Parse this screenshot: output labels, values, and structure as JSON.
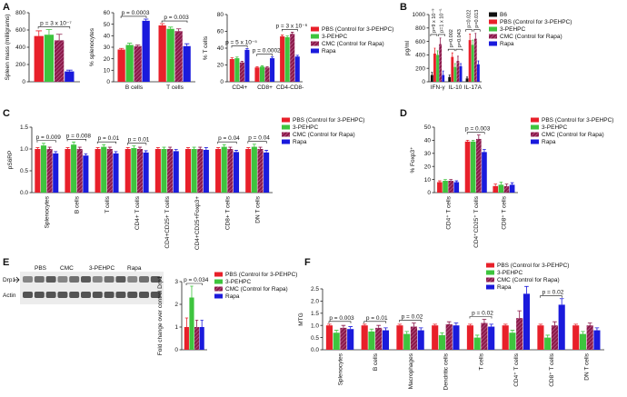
{
  "panel_labels": [
    "A",
    "B",
    "C",
    "D",
    "E",
    "F"
  ],
  "blot": {
    "lanes": [
      "PBS",
      "CMC",
      "3-PEHPC",
      "Rapa"
    ],
    "rows": [
      "Drp1",
      "Actin"
    ]
  },
  "chart_data": [
    {
      "type": "bar",
      "ylabel": "Spleen mass (milligrams)",
      "categories": [
        null
      ],
      "ylim": [
        0,
        800
      ],
      "yticks": [
        0,
        200,
        400,
        600,
        800
      ],
      "legend": false,
      "series": [
        {
          "color": "#e8202a",
          "values": [
            530
          ],
          "errors": [
            60
          ]
        },
        {
          "color": "#3ec43e",
          "values": [
            545
          ],
          "errors": [
            60
          ]
        },
        {
          "color": "#8b1a4a",
          "hatch": true,
          "values": [
            480
          ],
          "errors": [
            70
          ]
        },
        {
          "color": "#1a1adc",
          "values": [
            120
          ],
          "errors": [
            15
          ]
        }
      ],
      "annotations": [
        {
          "text": "p = 3 x 10⁻⁷",
          "category": null
        }
      ]
    },
    {
      "type": "bar",
      "ylabel": "% splenocytes",
      "categories": [
        "B cells",
        "T cells"
      ],
      "ylim": [
        0,
        60
      ],
      "yticks": [
        0,
        10,
        20,
        30,
        40,
        50,
        60
      ],
      "legend": false,
      "series": [
        {
          "color": "#e8202a",
          "values": [
            28,
            49
          ],
          "errors": [
            1,
            1.5
          ]
        },
        {
          "color": "#3ec43e",
          "values": [
            32,
            46
          ],
          "errors": [
            1.5,
            1.5
          ]
        },
        {
          "color": "#8b1a4a",
          "hatch": true,
          "values": [
            31,
            44
          ],
          "errors": [
            1,
            2
          ]
        },
        {
          "color": "#1a1adc",
          "values": [
            53,
            31
          ],
          "errors": [
            1.5,
            2
          ]
        }
      ],
      "annotations": [
        {
          "text": "p = 0.0003",
          "category": "B cells"
        },
        {
          "text": "p = 0.003",
          "category": "T cells"
        }
      ]
    },
    {
      "type": "bar",
      "ylabel": "% T cells",
      "categories": [
        "CD4+",
        "CD8+",
        "CD4-CD8-"
      ],
      "ylim": [
        0,
        80
      ],
      "yticks": [
        0,
        20,
        40,
        60,
        80
      ],
      "legend": true,
      "series": [
        {
          "name": "PBS (Control for 3-PEHPC)",
          "color": "#e8202a",
          "values": [
            27,
            17,
            54
          ],
          "errors": [
            1.5,
            1,
            1.5
          ]
        },
        {
          "name": "3-PEHPC",
          "color": "#3ec43e",
          "values": [
            28,
            18,
            53
          ],
          "errors": [
            1.5,
            1,
            1.5
          ]
        },
        {
          "name": "CMC (Control for Rapa)",
          "color": "#8b1a4a",
          "hatch": true,
          "values": [
            23,
            17,
            57
          ],
          "errors": [
            1.5,
            1,
            2
          ]
        },
        {
          "name": "Rapa",
          "color": "#1a1adc",
          "values": [
            38,
            28,
            30
          ],
          "errors": [
            1.5,
            1.5,
            1.5
          ]
        }
      ],
      "annotations": [
        {
          "text": "p = 5 x 10⁻⁵",
          "category": "CD4+"
        },
        {
          "text": "p = 0.0002",
          "category": "CD8+"
        },
        {
          "text": "p = 3 x 10⁻⁶",
          "category": "CD4-CD8-"
        }
      ]
    },
    {
      "type": "bar",
      "ylabel": "pg/ml",
      "categories": [
        "IFN-γ",
        "IL-10",
        "IL-17A"
      ],
      "ylim": [
        0,
        1000
      ],
      "yticks": [
        0,
        200,
        400,
        600,
        800,
        1000
      ],
      "legend": true,
      "series": [
        {
          "name": "B6",
          "color": "#111111",
          "values": [
            100,
            70,
            50
          ],
          "errors": [
            40,
            30,
            20
          ]
        },
        {
          "name": "PBS (Control for 3-PEHPC)",
          "color": "#e8202a",
          "values": [
            420,
            370,
            620
          ],
          "errors": [
            80,
            60,
            90
          ]
        },
        {
          "name": "3-PEHPC",
          "color": "#3ec43e",
          "values": [
            400,
            220,
            550
          ],
          "errors": [
            60,
            50,
            70
          ]
        },
        {
          "name": "CMC (Control for Rapa)",
          "color": "#8b1a4a",
          "hatch": true,
          "values": [
            560,
            310,
            640
          ],
          "errors": [
            90,
            70,
            80
          ]
        },
        {
          "name": "Rapa",
          "color": "#1a1adc",
          "values": [
            100,
            230,
            260
          ],
          "errors": [
            60,
            40,
            50
          ]
        }
      ],
      "annotations": [
        {
          "text": "p=9 x 10⁻⁸",
          "category": "IFN-γ"
        },
        {
          "text": "p=1 x 10⁻⁵",
          "category": "IFN-γ"
        },
        {
          "text": "p=0.002",
          "category": "IL-10"
        },
        {
          "text": "p=0.043",
          "category": "IL-10"
        },
        {
          "text": "p=0.022",
          "category": "IL-17A"
        },
        {
          "text": "p=0.013",
          "category": "IL-17A"
        }
      ]
    },
    {
      "type": "bar",
      "ylabel": "pS6RP",
      "categories": [
        "Splenocytes",
        "B cells",
        "T cells",
        "CD4+ T cells",
        "CD4+CD25+ T cells",
        "CD4+CD25+Foxp3+",
        "CD8+ T cells",
        "DN T cells"
      ],
      "ylim": [
        0,
        1.5
      ],
      "yticks": [
        {
          "value": 0,
          "label": "0.0"
        },
        0.5,
        {
          "value": 1,
          "label": "1.0"
        },
        1.5
      ],
      "legend": true,
      "series": [
        {
          "name": "PBS (Control for 3-PEHPC)",
          "color": "#e8202a",
          "values": [
            1,
            1,
            1,
            1,
            1,
            1,
            1,
            1
          ],
          "errors": [
            0.03,
            0.03,
            0.03,
            0.03,
            0.03,
            0.03,
            0.03,
            0.03
          ]
        },
        {
          "name": "3-PEHPC",
          "color": "#3ec43e",
          "values": [
            1.08,
            1.1,
            1.05,
            1.02,
            1.0,
            1.0,
            1.05,
            1.05
          ],
          "errors": [
            0.05,
            0.06,
            0.05,
            0.05,
            0.04,
            0.04,
            0.05,
            0.06
          ]
        },
        {
          "name": "CMC (Control for Rapa)",
          "color": "#8b1a4a",
          "hatch": true,
          "values": [
            1.0,
            1.0,
            1.0,
            1.0,
            1.0,
            1.0,
            1.0,
            1.0
          ],
          "errors": [
            0.04,
            0.04,
            0.04,
            0.04,
            0.04,
            0.04,
            0.04,
            0.04
          ]
        },
        {
          "name": "Rapa",
          "color": "#1a1adc",
          "values": [
            0.9,
            0.85,
            0.9,
            0.92,
            0.95,
            0.98,
            0.93,
            0.92
          ],
          "errors": [
            0.04,
            0.04,
            0.04,
            0.04,
            0.04,
            0.05,
            0.04,
            0.05
          ]
        }
      ],
      "annotations": [
        {
          "text": "p = 0.009",
          "category": "Splenocytes"
        },
        {
          "text": "p = 0.008",
          "category": "B cells"
        },
        {
          "text": "p = 0.01",
          "category": "T cells"
        },
        {
          "text": "p = 0.01",
          "category": "CD4+ T cells"
        },
        {
          "text": "p = 0.04",
          "category": "CD8+ T cells"
        },
        {
          "text": "p = 0.04",
          "category": "DN T cells"
        }
      ]
    },
    {
      "type": "bar",
      "ylabel": "% Foxp3⁺",
      "categories": [
        "CD4⁺ T cells",
        "CD4⁺CD25⁺ T cells",
        "CD8⁺ T cells"
      ],
      "ylim": [
        0,
        50
      ],
      "yticks": [
        0,
        10,
        20,
        30,
        40,
        50
      ],
      "legend": true,
      "series": [
        {
          "name": "PBS (Control for 3-PEHPC)",
          "color": "#e8202a",
          "values": [
            8,
            39,
            5
          ],
          "errors": [
            1,
            1,
            1.5
          ]
        },
        {
          "name": "3-PEHPC",
          "color": "#3ec43e",
          "values": [
            9,
            39,
            6
          ],
          "errors": [
            1,
            1,
            2
          ]
        },
        {
          "name": "CMC (Control for Rapa)",
          "color": "#8b1a4a",
          "hatch": true,
          "values": [
            9,
            41,
            5
          ],
          "errors": [
            1,
            3,
            1.5
          ]
        },
        {
          "name": "Rapa",
          "color": "#1a1adc",
          "values": [
            8,
            31,
            6
          ],
          "errors": [
            1,
            2,
            1.5
          ]
        }
      ],
      "annotations": [
        {
          "text": "p = 0.003",
          "category": "CD4⁺CD25⁺ T cells"
        }
      ]
    },
    {
      "type": "bar",
      "ylabel": "Fold change over control Drp1",
      "categories": [
        null
      ],
      "ylim": [
        0,
        3
      ],
      "yticks": [
        0,
        1,
        2,
        3
      ],
      "legend": true,
      "series": [
        {
          "name": "PBS (Control for 3-PEHPC)",
          "color": "#e8202a",
          "values": [
            1
          ],
          "errors": [
            0.4
          ]
        },
        {
          "name": "3-PEHPC",
          "color": "#3ec43e",
          "values": [
            2.3
          ],
          "errors": [
            0.5
          ]
        },
        {
          "name": "CMC (Control for Rapa)",
          "color": "#8b1a4a",
          "hatch": true,
          "values": [
            1
          ],
          "errors": [
            0.3
          ]
        },
        {
          "name": "Rapa",
          "color": "#1a1adc",
          "values": [
            1
          ],
          "errors": [
            0.3
          ]
        }
      ],
      "annotations": [
        {
          "text": "p = 0.034",
          "category": null
        }
      ]
    },
    {
      "type": "bar",
      "ylabel": "MTG",
      "categories": [
        "Splenocytes",
        "B cells",
        "Macrophages",
        "Dendritic cells",
        "T cells",
        "CD4⁺ T cells",
        "CD8⁺ T cells",
        "DN T cells"
      ],
      "ylim": [
        0,
        2.5
      ],
      "yticks": [
        {
          "value": 0,
          "label": "0.0"
        },
        0.5,
        {
          "value": 1,
          "label": "1.0"
        },
        1.5,
        {
          "value": 2,
          "label": "2.0"
        },
        2.5
      ],
      "legend": true,
      "series": [
        {
          "name": "PBS (Control for 3-PEHPC)",
          "color": "#e8202a",
          "values": [
            1,
            1,
            1,
            1,
            1,
            1,
            1,
            1
          ],
          "errors": [
            0.05,
            0.05,
            0.05,
            0.05,
            0.05,
            0.05,
            0.05,
            0.05
          ]
        },
        {
          "name": "3-PEHPC",
          "color": "#3ec43e",
          "values": [
            0.7,
            0.75,
            0.65,
            0.6,
            0.5,
            0.7,
            0.5,
            0.65
          ],
          "errors": [
            0.1,
            0.1,
            0.1,
            0.1,
            0.1,
            0.1,
            0.1,
            0.1
          ]
        },
        {
          "name": "CMC (Control for Rapa)",
          "color": "#8b1a4a",
          "hatch": true,
          "values": [
            0.9,
            0.9,
            0.95,
            1.05,
            1.1,
            1.3,
            1.0,
            1.0
          ],
          "errors": [
            0.1,
            0.1,
            0.15,
            0.1,
            0.15,
            0.3,
            0.15,
            0.1
          ]
        },
        {
          "name": "Rapa",
          "color": "#1a1adc",
          "values": [
            0.85,
            0.8,
            0.8,
            1.0,
            0.95,
            2.3,
            1.85,
            0.8
          ],
          "errors": [
            0.1,
            0.1,
            0.1,
            0.1,
            0.1,
            0.3,
            0.25,
            0.1
          ]
        }
      ],
      "annotations": [
        {
          "text": "p = 0.003",
          "category": "Splenocytes"
        },
        {
          "text": "p = 0.01",
          "category": "B cells"
        },
        {
          "text": "p = 0.02",
          "category": "Macrophages"
        },
        {
          "text": "p = 0.02",
          "category": "T cells"
        },
        {
          "text": "p = 0.02",
          "category": "CD8⁺ T cells"
        }
      ]
    }
  ]
}
